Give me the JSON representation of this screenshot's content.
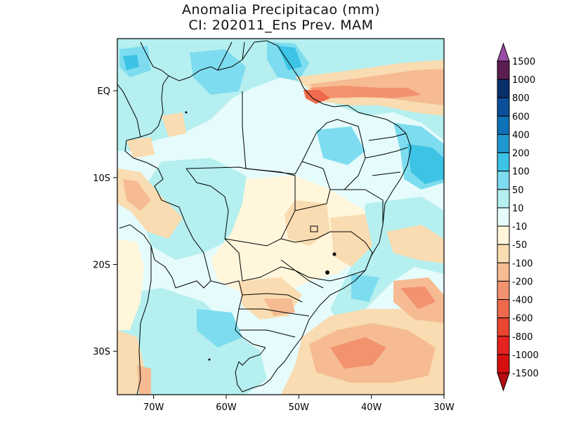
{
  "title_line1": "Anomalia Precipitacao (mm)",
  "title_line2": "CI: 202011_Ens Prev. MAM",
  "map": {
    "lon_range": [
      -75,
      -30
    ],
    "lat_range": [
      -35,
      6
    ],
    "lat_ticks": [
      {
        "value": 0,
        "label": "EQ"
      },
      {
        "value": -10,
        "label": "10S"
      },
      {
        "value": -20,
        "label": "20S"
      },
      {
        "value": -30,
        "label": "30S"
      }
    ],
    "lon_ticks": [
      {
        "value": -70,
        "label": "70W"
      },
      {
        "value": -60,
        "label": "60W"
      },
      {
        "value": -50,
        "label": "50W"
      },
      {
        "value": -40,
        "label": "40W"
      },
      {
        "value": -30,
        "label": "30W"
      }
    ]
  },
  "colorbar": {
    "levels": [
      "1500",
      "1000",
      "800",
      "600",
      "400",
      "200",
      "100",
      "50",
      "10",
      "-10",
      "-50",
      "-100",
      "-200",
      "-400",
      "-600",
      "-800",
      "-1000",
      "-1500"
    ],
    "colors": [
      "#5a1d4f",
      "#08306b",
      "#0b4f9a",
      "#0d72b8",
      "#1f97d0",
      "#3cc3e5",
      "#7ddcef",
      "#b5efef",
      "#e6fbfb",
      "#fff6dc",
      "#f9dcb1",
      "#f6bb93",
      "#f3926f",
      "#ef6a4c",
      "#ea4631",
      "#e52220",
      "#d80f0f"
    ],
    "top_arrow_color": "#9b4ba5",
    "bottom_arrow_color": "#b40d0d"
  }
}
